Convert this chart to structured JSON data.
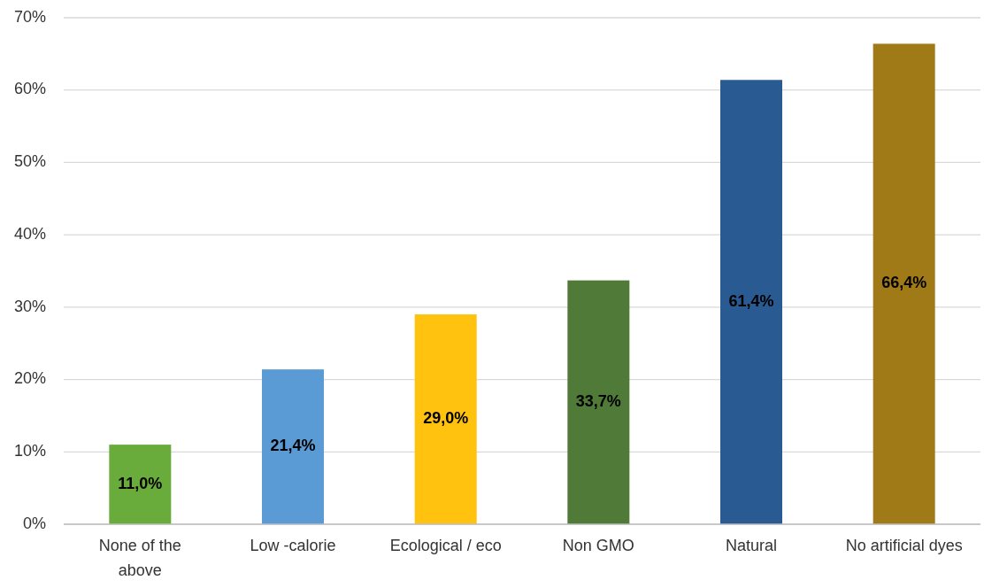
{
  "chart_data": {
    "type": "bar",
    "categories": [
      "None of the above",
      "Low -calorie",
      "Ecological / eco",
      "Non GMO",
      "Natural",
      "No artificial dyes"
    ],
    "values": [
      11.0,
      21.4,
      29.0,
      33.7,
      61.4,
      66.4
    ],
    "colors": [
      "#6aac3c",
      "#5b9bd5",
      "#ffc20e",
      "#4f7a38",
      "#2a5a92",
      "#a07a16"
    ],
    "value_labels": [
      "11,0%",
      "21,4%",
      "29,0%",
      "33,7%",
      "61,4%",
      "66,4%"
    ],
    "ylim": [
      0,
      70
    ],
    "yticks": [
      {
        "value": 0,
        "label": "0%"
      },
      {
        "value": 10,
        "label": "10%"
      },
      {
        "value": 20,
        "label": "20%"
      },
      {
        "value": 30,
        "label": "30%"
      },
      {
        "value": 40,
        "label": "40%"
      },
      {
        "value": 50,
        "label": "50%"
      },
      {
        "value": 60,
        "label": "60%"
      },
      {
        "value": 70,
        "label": "70%"
      }
    ],
    "grid": "y"
  }
}
